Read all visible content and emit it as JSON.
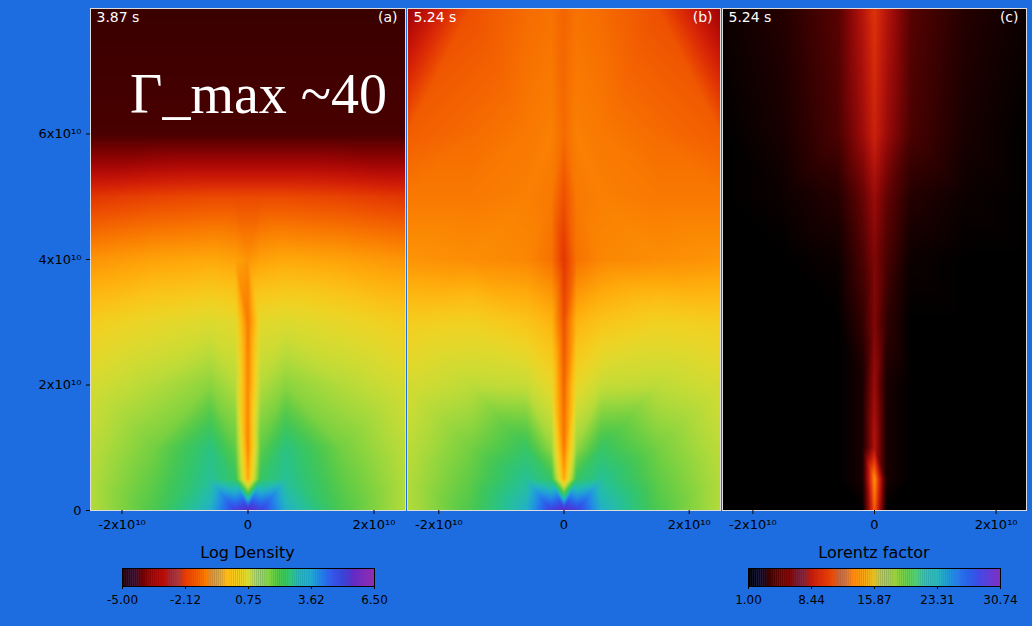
{
  "chart_data": [
    {
      "type": "heatmap",
      "time": "3.87 s",
      "panel": "(a)",
      "annotation": "Γ_max ~40",
      "x": [
        -25000000000,
        -15000000000,
        -6000000000,
        -2000000000,
        0,
        2000000000,
        6000000000,
        15000000000,
        25000000000
      ],
      "y": [
        0,
        5000000000,
        10000000000,
        20000000000,
        30000000000,
        40000000000,
        50000000000,
        60000000000,
        80000000000
      ],
      "z": [
        [
          1.2,
          2.2,
          3.5,
          5.0,
          5.5,
          5.0,
          3.5,
          2.2,
          1.2
        ],
        [
          1.2,
          2.0,
          3.0,
          2.5,
          -0.5,
          2.5,
          3.0,
          2.0,
          1.2
        ],
        [
          1.1,
          1.8,
          2.8,
          2.0,
          -1.0,
          2.0,
          2.8,
          1.8,
          1.1
        ],
        [
          0.8,
          1.2,
          1.6,
          1.2,
          -1.0,
          1.2,
          1.6,
          1.2,
          0.8
        ],
        [
          0.2,
          0.5,
          0.7,
          0.6,
          -1.2,
          0.6,
          0.7,
          0.5,
          0.2
        ],
        [
          -0.8,
          -0.6,
          -0.5,
          -0.6,
          -0.8,
          -0.6,
          -0.5,
          -0.6,
          -0.8
        ],
        [
          -2.2,
          -2.0,
          -1.9,
          -1.9,
          -1.9,
          -1.9,
          -1.9,
          -2.0,
          -2.2
        ],
        [
          -4.6,
          -4.6,
          -4.6,
          -4.6,
          -4.6,
          -4.6,
          -4.6,
          -4.6,
          -4.6
        ],
        [
          -4.8,
          -4.8,
          -4.8,
          -4.8,
          -4.8,
          -4.8,
          -4.8,
          -4.8,
          -4.8
        ]
      ],
      "zlim": [
        -5,
        6.5
      ],
      "xlim": [
        -25000000000,
        25000000000
      ],
      "ylim": [
        0,
        80000000000
      ],
      "xticks": [
        {
          "value": -20000000000,
          "label": "-2x10¹⁰"
        },
        0,
        {
          "value": 20000000000,
          "label": "2x10¹⁰"
        }
      ],
      "yticks": [
        0,
        {
          "value": 20000000000,
          "label": "2x10¹⁰"
        },
        {
          "value": 40000000000,
          "label": "4x10¹⁰"
        },
        {
          "value": 60000000000,
          "label": "6x10¹⁰"
        }
      ],
      "colorbar": {
        "label": "Log Density",
        "range": [
          -5,
          6.5
        ],
        "ticks": [
          {
            "value": -5,
            "label": "-5.00"
          },
          -2.12,
          0.75,
          3.62,
          {
            "value": 6.5,
            "label": "6.50"
          }
        ]
      }
    },
    {
      "type": "heatmap",
      "time": "5.24 s",
      "panel": "(b)",
      "tick_labels": "x",
      "x": [
        -25000000000,
        -15000000000,
        -6000000000,
        -2000000000,
        0,
        2000000000,
        6000000000,
        15000000000,
        25000000000
      ],
      "y": [
        0,
        5000000000,
        10000000000,
        20000000000,
        30000000000,
        40000000000,
        50000000000,
        60000000000,
        80000000000
      ],
      "z": [
        [
          1.2,
          2.2,
          3.5,
          5.0,
          5.5,
          5.0,
          3.5,
          2.2,
          1.2
        ],
        [
          1.2,
          2.0,
          3.0,
          2.5,
          -0.5,
          2.5,
          3.0,
          2.0,
          1.2
        ],
        [
          1.1,
          1.8,
          2.5,
          1.5,
          -1.2,
          1.5,
          2.5,
          1.8,
          1.1
        ],
        [
          0.8,
          1.1,
          1.0,
          0.5,
          -1.5,
          0.5,
          1.0,
          1.1,
          0.8
        ],
        [
          0.2,
          0.3,
          0.0,
          -0.3,
          -1.8,
          -0.3,
          0.0,
          0.3,
          0.2
        ],
        [
          -0.8,
          -0.9,
          -1.0,
          -1.3,
          -2.2,
          -1.3,
          -1.0,
          -0.9,
          -0.8
        ],
        [
          -1.2,
          -1.2,
          -1.1,
          -1.2,
          -1.8,
          -1.2,
          -1.1,
          -1.2,
          -1.2
        ],
        [
          -1.6,
          -1.4,
          -1.2,
          -1.1,
          -1.4,
          -1.1,
          -1.2,
          -1.4,
          -1.6
        ],
        [
          -3.5,
          -1.8,
          -1.4,
          -1.3,
          -1.5,
          -1.3,
          -1.4,
          -1.8,
          -3.5
        ]
      ],
      "zlim": [
        -5,
        6.5
      ],
      "xlim": [
        -25000000000,
        25000000000
      ],
      "ylim": [
        0,
        80000000000
      ],
      "xticks": [
        {
          "value": -20000000000,
          "label": "-2x10¹⁰"
        },
        0,
        {
          "value": 20000000000,
          "label": "2x10¹⁰"
        }
      ]
    },
    {
      "type": "heatmap",
      "time": "5.24 s",
      "panel": "(c)",
      "tick_labels": "x",
      "x": [
        -25000000000,
        -15000000000,
        -6000000000,
        -2000000000,
        0,
        2000000000,
        6000000000,
        15000000000,
        25000000000
      ],
      "y": [
        0,
        5000000000,
        10000000000,
        20000000000,
        30000000000,
        40000000000,
        50000000000,
        60000000000,
        80000000000
      ],
      "z": [
        [
          1,
          1,
          1,
          1,
          12,
          1,
          1,
          1,
          1
        ],
        [
          1,
          1,
          1,
          2,
          14,
          2,
          1,
          1,
          1
        ],
        [
          1,
          1,
          1,
          2,
          8,
          2,
          1,
          1,
          1
        ],
        [
          1,
          1,
          1,
          2,
          7,
          2,
          1,
          1,
          1
        ],
        [
          1,
          1,
          1,
          3,
          6,
          3,
          1,
          1,
          1
        ],
        [
          1,
          1,
          1.5,
          4,
          6,
          4,
          1.5,
          1,
          1
        ],
        [
          1,
          1.5,
          2.5,
          5,
          7,
          5,
          2.5,
          1.5,
          1
        ],
        [
          1,
          2,
          4,
          7,
          9,
          7,
          4,
          2,
          1
        ],
        [
          1.5,
          2.5,
          4.5,
          8,
          10,
          8,
          4.5,
          2.5,
          1.5
        ]
      ],
      "zlim": [
        1,
        30.74
      ],
      "xlim": [
        -25000000000,
        25000000000
      ],
      "ylim": [
        0,
        80000000000
      ],
      "xticks": [
        {
          "value": -20000000000,
          "label": "-2x10¹⁰"
        },
        0,
        {
          "value": 20000000000,
          "label": "2x10¹⁰"
        }
      ],
      "colorbar": {
        "label": "Lorentz factor",
        "range": [
          1,
          30.74
        ],
        "ticks": [
          {
            "value": 1,
            "label": "1.00"
          },
          8.44,
          15.87,
          23.31,
          30.74
        ]
      }
    }
  ]
}
